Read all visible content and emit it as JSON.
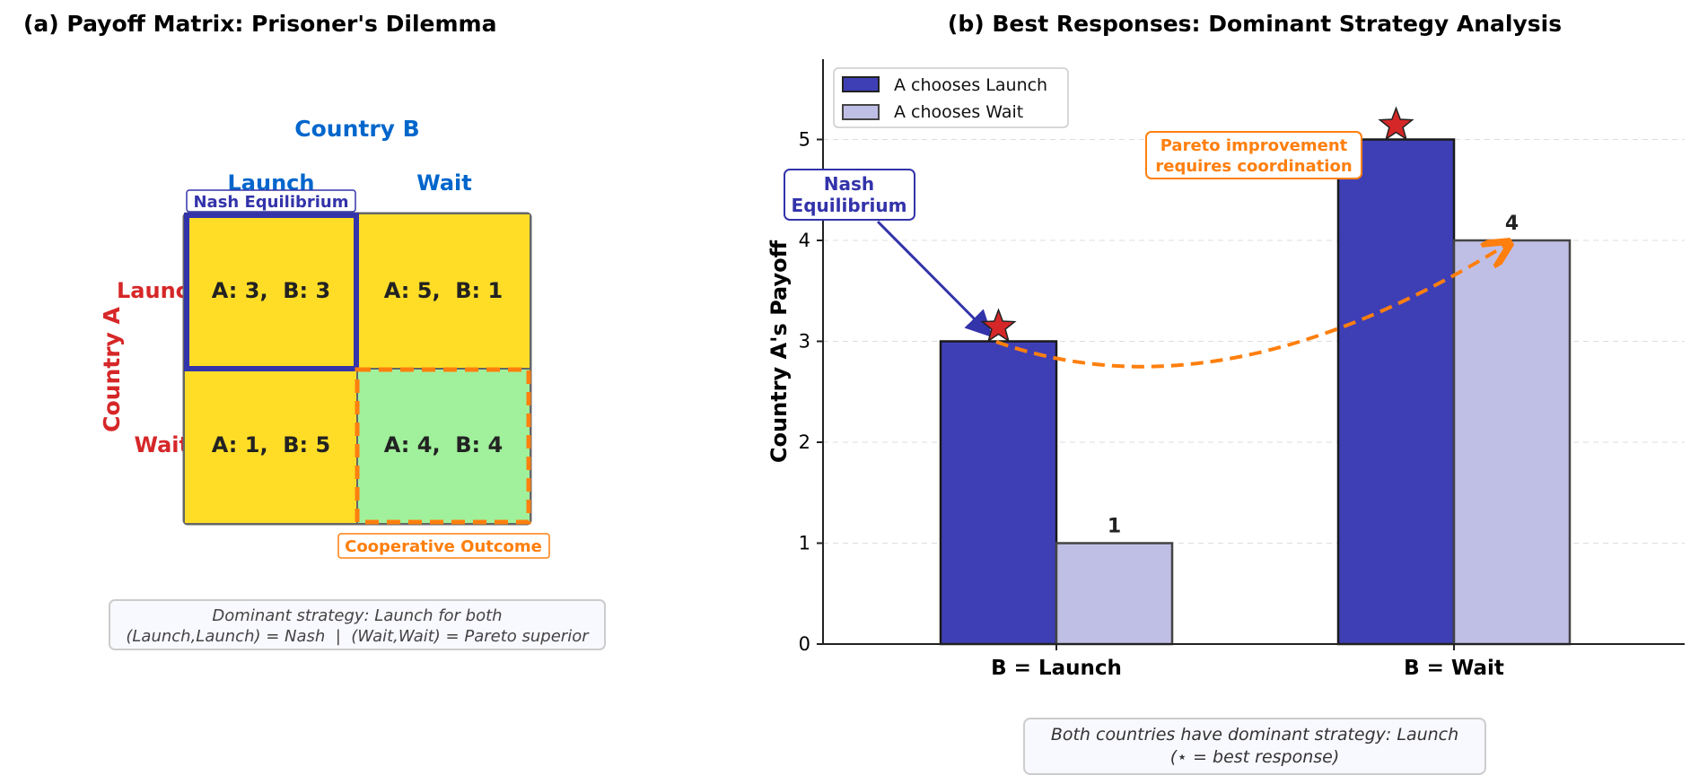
{
  "chart_data": [
    {
      "type": "table",
      "title": "(a) Payoff Matrix: Prisoner's Dilemma",
      "col_player": "Country B",
      "row_player": "Country A",
      "col_labels": [
        "Launch",
        "Wait"
      ],
      "row_labels": [
        "Launch",
        "Wait"
      ],
      "cells": [
        [
          "A: 3,  B: 3",
          "A: 5,  B: 1"
        ],
        [
          "A: 1,  B: 5",
          "A: 4,  B: 4"
        ]
      ],
      "cell_colors": [
        [
          "#FFDD27",
          "#FFDD27"
        ],
        [
          "#FFDD27",
          "#A0F09C"
        ]
      ],
      "nash_label": "Nash Equilibrium",
      "coop_label": "Cooperative Outcome",
      "note_line1": "Dominant strategy: Launch for both",
      "note_line2": "(Launch,Launch) = Nash  |  (Wait,Wait) = Pareto superior",
      "colors": {
        "col": "#0066CC",
        "row": "#D62728",
        "nash": "#3333AA",
        "coop": "#FF7F0E"
      }
    },
    {
      "type": "bar",
      "title": "(b) Best Responses: Dominant Strategy Analysis",
      "categories": [
        "B = Launch",
        "B = Wait"
      ],
      "series": [
        {
          "name": "A chooses Launch",
          "values": [
            3,
            5
          ],
          "color": "#3F3FB5"
        },
        {
          "name": "A chooses Wait",
          "values": [
            1,
            4
          ],
          "color": "#BFBFE6"
        }
      ],
      "data_labels": [
        "1",
        "4"
      ],
      "ylabel": "Country A's Payoff",
      "xlabel": "",
      "ylim": [
        0,
        5.8
      ],
      "yticks": [
        "0",
        "1",
        "2",
        "3",
        "4",
        "5"
      ],
      "grid": true,
      "legend": "top-left",
      "best_response_markers": [
        {
          "category": "B = Launch",
          "value": 3
        },
        {
          "category": "B = Wait",
          "value": 5
        }
      ],
      "annotations": {
        "nash": "Nash\nEquilibrium",
        "pareto_line1": "Pareto improvement",
        "pareto_line2": "requires coordination"
      },
      "note_line1": "Both countries have dominant strategy: Launch",
      "note_line2": "(⋆ = best response)"
    }
  ]
}
